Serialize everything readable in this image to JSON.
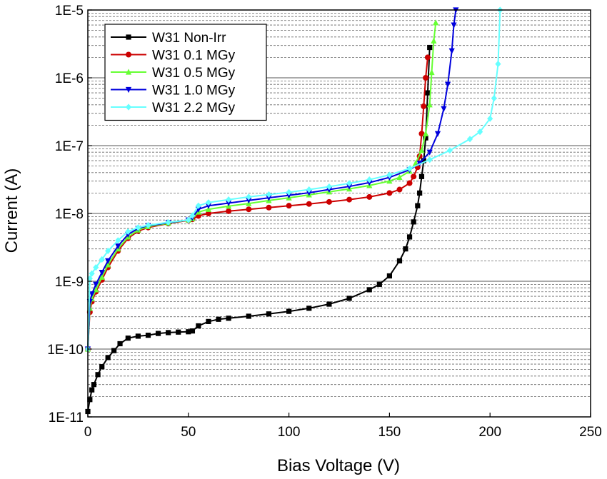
{
  "chart_data": {
    "type": "line",
    "xlabel": "Bias Voltage (V)",
    "ylabel": "Current (A)",
    "xlim": [
      0,
      250
    ],
    "ylim": [
      1e-11,
      1e-05
    ],
    "yscale": "log",
    "x_ticks": [
      "0",
      "50",
      "100",
      "150",
      "200",
      "250"
    ],
    "y_ticks": [
      "1E-11",
      "1E-10",
      "1E-9",
      "1E-8",
      "1E-7",
      "1E-6",
      "1E-5"
    ],
    "grid": "horizontal major and minor (log) gridlines",
    "legend_position": "top-left",
    "series": [
      {
        "name": "W31 Non-Irr",
        "color": "#000000",
        "marker": "square",
        "x": [
          0,
          1,
          2,
          3,
          5,
          7,
          10,
          13,
          16,
          20,
          25,
          30,
          35,
          40,
          45,
          50,
          52,
          55,
          60,
          65,
          70,
          80,
          90,
          100,
          110,
          120,
          130,
          140,
          145,
          150,
          155,
          158,
          160,
          162,
          164,
          165,
          166,
          167,
          168,
          169,
          170
        ],
        "y": [
          1.2e-11,
          1.8e-11,
          2.5e-11,
          3e-11,
          4.2e-11,
          5.5e-11,
          7.5e-11,
          9.5e-11,
          1.2e-10,
          1.45e-10,
          1.55e-10,
          1.6e-10,
          1.7e-10,
          1.75e-10,
          1.78e-10,
          1.8e-10,
          1.85e-10,
          2.2e-10,
          2.55e-10,
          2.75e-10,
          2.85e-10,
          3.05e-10,
          3.3e-10,
          3.6e-10,
          4e-10,
          4.6e-10,
          5.6e-10,
          7.5e-10,
          9e-10,
          1.2e-09,
          2e-09,
          3e-09,
          4.5e-09,
          7.5e-09,
          1.3e-08,
          2e-08,
          3.5e-08,
          6e-08,
          1.3e-07,
          6e-07,
          2.8e-06
        ]
      },
      {
        "name": "W31 0.1 MGy",
        "color": "#cc0000",
        "marker": "circle",
        "x": [
          0,
          1,
          2,
          4,
          7,
          10,
          15,
          20,
          25,
          30,
          40,
          50,
          52,
          55,
          60,
          70,
          80,
          90,
          100,
          110,
          120,
          130,
          140,
          150,
          155,
          160,
          162,
          164,
          165,
          166,
          167,
          168,
          169
        ],
        "y": [
          1e-10,
          3.5e-10,
          5e-10,
          7e-10,
          1.05e-09,
          1.6e-09,
          2.8e-09,
          4.3e-09,
          5.5e-09,
          6.2e-09,
          7.1e-09,
          7.9e-09,
          8.2e-09,
          9.2e-09,
          1e-08,
          1.08e-08,
          1.15e-08,
          1.22e-08,
          1.3e-08,
          1.38e-08,
          1.48e-08,
          1.6e-08,
          1.75e-08,
          2e-08,
          2.25e-08,
          2.8e-08,
          3.5e-08,
          4.8e-08,
          7e-08,
          1.5e-07,
          3.8e-07,
          1e-06,
          2e-06
        ]
      },
      {
        "name": "W31 0.5 MGy",
        "color": "#66ff33",
        "marker": "triangle-up",
        "x": [
          0,
          1,
          2,
          4,
          7,
          10,
          15,
          20,
          25,
          30,
          40,
          50,
          52,
          55,
          60,
          70,
          80,
          90,
          100,
          110,
          120,
          130,
          140,
          150,
          155,
          160,
          163,
          166,
          168,
          170,
          171,
          172,
          173
        ],
        "y": [
          1e-10,
          4e-10,
          5.5e-10,
          7.5e-10,
          1.15e-09,
          1.75e-09,
          3e-09,
          4.5e-09,
          5.7e-09,
          6.4e-09,
          7.2e-09,
          8e-09,
          8.4e-09,
          1.05e-08,
          1.15e-08,
          1.28e-08,
          1.4e-08,
          1.55e-08,
          1.7e-08,
          1.88e-08,
          2.08e-08,
          2.3e-08,
          2.58e-08,
          3e-08,
          3.4e-08,
          4.2e-08,
          5.5e-08,
          8.5e-08,
          1.5e-07,
          4e-07,
          1.2e-06,
          3.5e-06,
          6.5e-06
        ]
      },
      {
        "name": "W31 1.0 MGy",
        "color": "#0000dd",
        "marker": "triangle-down",
        "x": [
          0,
          1,
          2,
          4,
          7,
          10,
          15,
          20,
          25,
          30,
          40,
          50,
          52,
          55,
          60,
          70,
          80,
          90,
          100,
          110,
          120,
          130,
          140,
          150,
          160,
          165,
          170,
          174,
          177,
          179,
          181,
          182,
          183
        ],
        "y": [
          1e-10,
          5e-10,
          6.5e-10,
          9e-10,
          1.35e-09,
          2e-09,
          3.3e-09,
          4.9e-09,
          6e-09,
          6.6e-09,
          7.3e-09,
          8e-09,
          8.7e-09,
          1.15e-08,
          1.3e-08,
          1.42e-08,
          1.56e-08,
          1.7e-08,
          1.85e-08,
          2.02e-08,
          2.25e-08,
          2.5e-08,
          2.85e-08,
          3.4e-08,
          4.4e-08,
          5.5e-08,
          8e-08,
          1.5e-07,
          3.5e-07,
          8e-07,
          2.5e-06,
          6e-06,
          1e-05
        ]
      },
      {
        "name": "W31 2.2 MGy",
        "color": "#66ffff",
        "marker": "diamond",
        "x": [
          0,
          1,
          2,
          4,
          7,
          10,
          15,
          20,
          25,
          30,
          40,
          50,
          52,
          55,
          60,
          70,
          80,
          90,
          100,
          110,
          120,
          130,
          140,
          150,
          160,
          170,
          180,
          190,
          195,
          200,
          202,
          204,
          205
        ],
        "y": [
          1e-10,
          1.1e-09,
          1.3e-09,
          1.6e-09,
          2.1e-09,
          2.8e-09,
          4e-09,
          5.4e-09,
          6.2e-09,
          6.7e-09,
          7.4e-09,
          8e-09,
          9.3e-09,
          1.3e-08,
          1.45e-08,
          1.6e-08,
          1.75e-08,
          1.9e-08,
          2.05e-08,
          2.25e-08,
          2.48e-08,
          2.78e-08,
          3.15e-08,
          3.7e-08,
          4.6e-08,
          6.2e-08,
          8.5e-08,
          1.25e-07,
          1.6e-07,
          2.5e-07,
          5e-07,
          1.6e-06,
          1e-05
        ]
      }
    ]
  }
}
